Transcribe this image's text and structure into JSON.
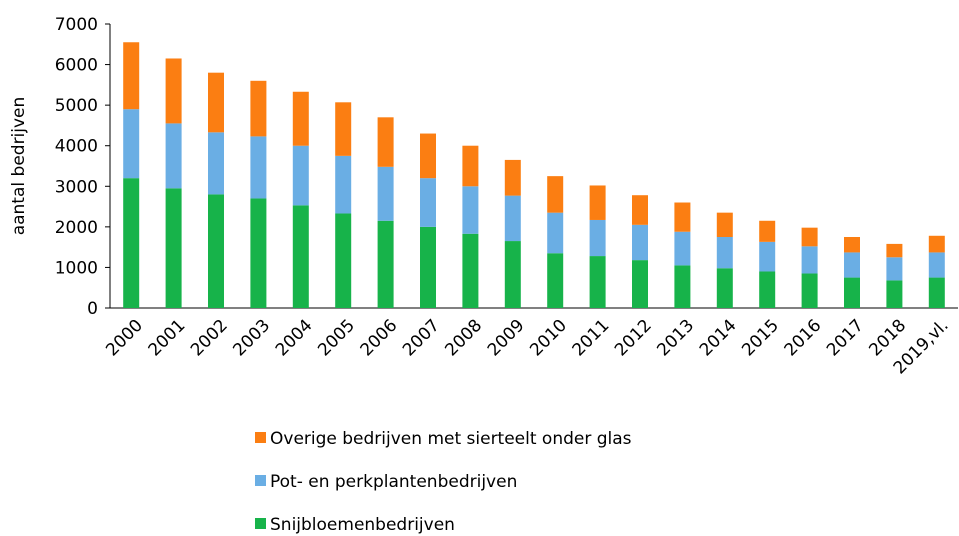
{
  "chart_data": {
    "type": "stacked_bar",
    "categories": [
      "2000",
      "2001",
      "2002",
      "2003",
      "2004",
      "2005",
      "2006",
      "2007",
      "2008",
      "2009",
      "2010",
      "2011",
      "2012",
      "2013",
      "2014",
      "2015",
      "2016",
      "2017",
      "2018",
      "2019,vl."
    ],
    "ylabel": "aantal bedrijven",
    "ylim": [
      0,
      7000
    ],
    "yticks": [
      0,
      1000,
      2000,
      3000,
      4000,
      5000,
      6000,
      7000
    ],
    "series": [
      {
        "name": "Snijbloemenbedrijven",
        "color": "#17b34a",
        "values": [
          3200,
          2950,
          2800,
          2700,
          2530,
          2330,
          2150,
          2000,
          1830,
          1650,
          1350,
          1280,
          1180,
          1050,
          980,
          900,
          850,
          750,
          680,
          750
        ]
      },
      {
        "name": "Pot- en perkplantenbedrijven",
        "color": "#6aaee4",
        "values": [
          1700,
          1600,
          1530,
          1530,
          1470,
          1420,
          1330,
          1200,
          1170,
          1120,
          1000,
          890,
          870,
          830,
          770,
          730,
          670,
          620,
          570,
          620
        ]
      },
      {
        "name": "Overige bedrijven met sierteelt onder glas",
        "color": "#fb7e12",
        "values": [
          1650,
          1600,
          1470,
          1370,
          1330,
          1320,
          1220,
          1100,
          1000,
          880,
          900,
          850,
          730,
          720,
          600,
          520,
          460,
          380,
          330,
          410
        ]
      }
    ]
  }
}
